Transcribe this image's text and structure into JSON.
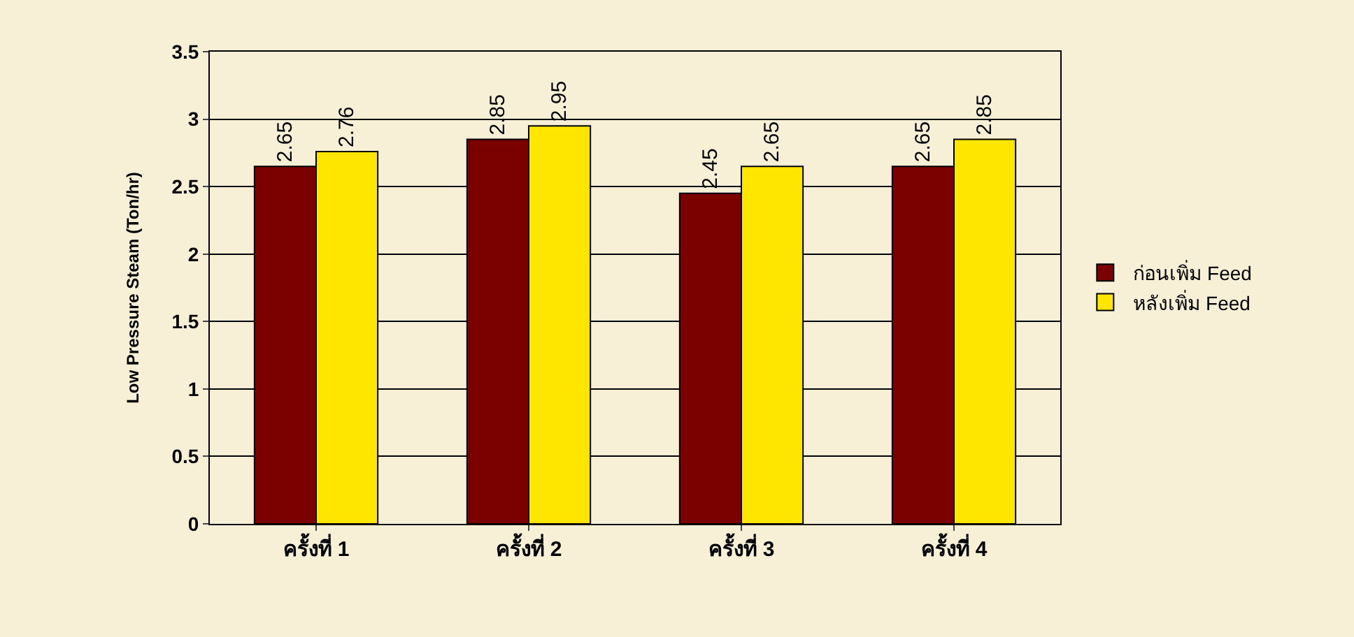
{
  "chart_data": {
    "type": "bar",
    "ylabel": "Low Pressure Steam (Ton/hr)",
    "categories": [
      "ครั้งที่ 1",
      "ครั้งที่ 2",
      "ครั้งที่ 3",
      "ครั้งที่ 4"
    ],
    "series": [
      {
        "name": "ก่อนเพิ่ม Feed",
        "color": "#7b0000",
        "values": [
          2.65,
          2.85,
          2.45,
          2.65
        ]
      },
      {
        "name": "หลังเพิ่ม Feed",
        "color": "#ffe600",
        "values": [
          2.76,
          2.95,
          2.65,
          2.85
        ]
      }
    ],
    "ylim": [
      0,
      3.5
    ],
    "yticks": [
      0,
      0.5,
      1,
      1.5,
      2,
      2.5,
      3,
      3.5
    ],
    "grid": "y",
    "legend": "right",
    "data_labels": true
  }
}
